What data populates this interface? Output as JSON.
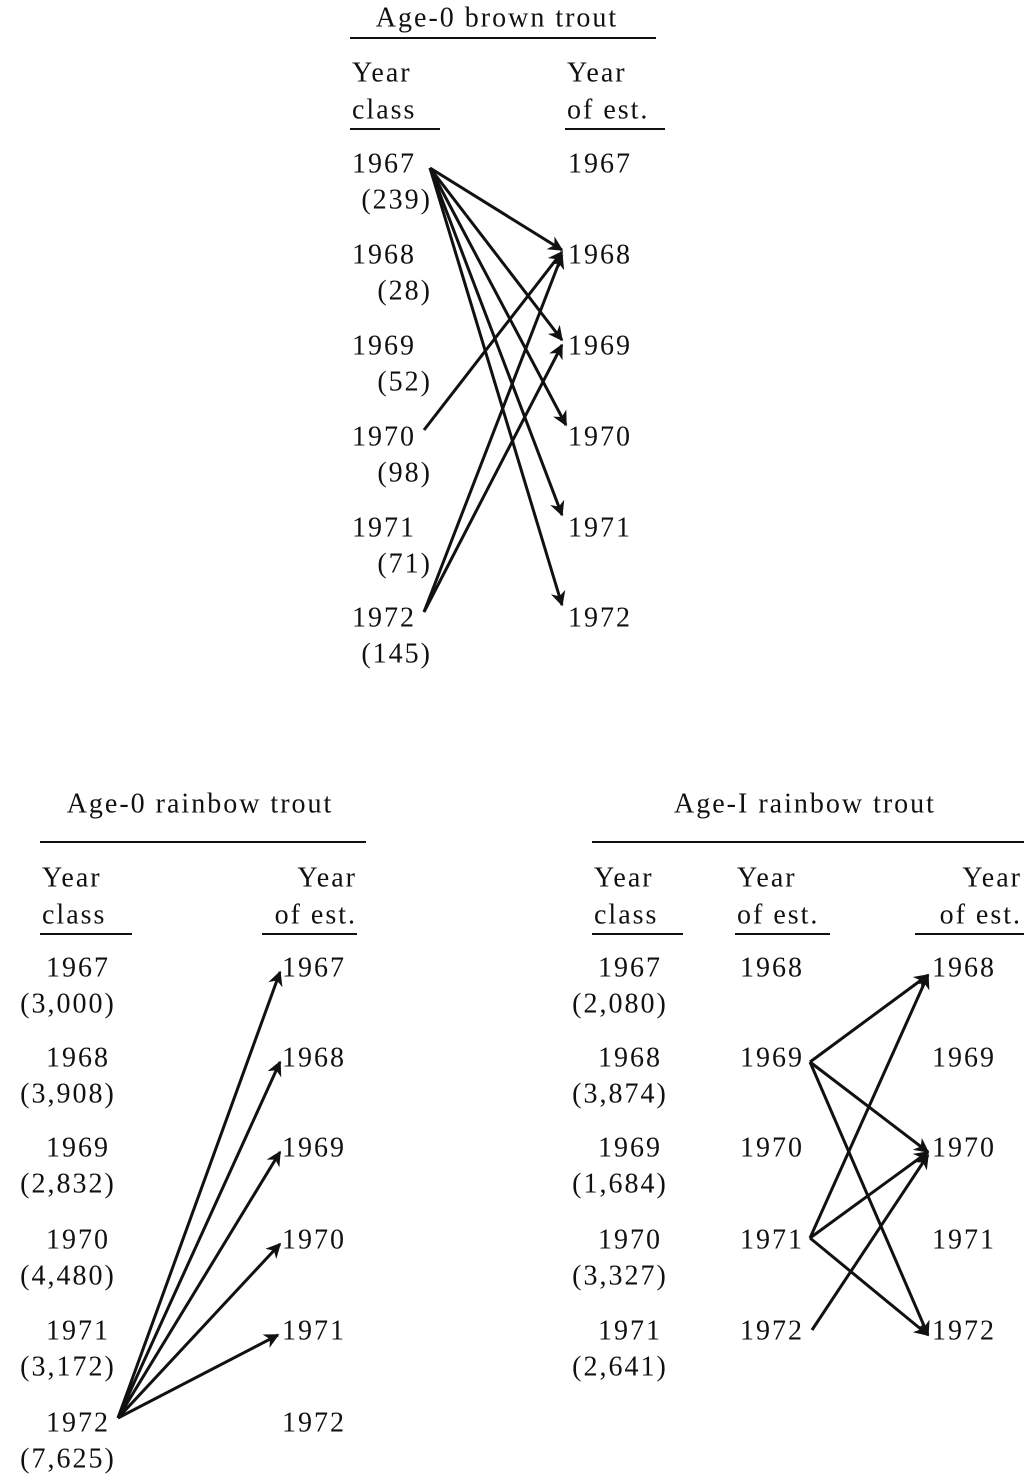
{
  "panels": [
    {
      "title": "Age-0 brown trout",
      "columns": [
        {
          "header": [
            "Year",
            "class"
          ],
          "rows": [
            [
              "1967",
              "(239)"
            ],
            [
              "1968",
              "(28)"
            ],
            [
              "1969",
              "(52)"
            ],
            [
              "1970",
              "(98)"
            ],
            [
              "1971",
              "(71)"
            ],
            [
              "1972",
              "(145)"
            ]
          ]
        },
        {
          "header": [
            "Year",
            "of est."
          ],
          "rows": [
            [
              "1967"
            ],
            [
              "1968"
            ],
            [
              "1969"
            ],
            [
              "1970"
            ],
            [
              "1971"
            ],
            [
              "1972"
            ]
          ]
        }
      ]
    },
    {
      "title": "Age-0 rainbow trout",
      "columns": [
        {
          "header": [
            "Year",
            "class"
          ],
          "rows": [
            [
              "1967",
              "(3,000)"
            ],
            [
              "1968",
              "(3,908)"
            ],
            [
              "1969",
              "(2,832)"
            ],
            [
              "1970",
              "(4,480)"
            ],
            [
              "1971",
              "(3,172)"
            ],
            [
              "1972",
              "(7,625)"
            ]
          ]
        },
        {
          "header": [
            "Year",
            "of est."
          ],
          "rows": [
            [
              "1967"
            ],
            [
              "1968"
            ],
            [
              "1969"
            ],
            [
              "1970"
            ],
            [
              "1971"
            ],
            [
              "1972"
            ]
          ]
        }
      ]
    },
    {
      "title": "Age-I rainbow trout",
      "columns": [
        {
          "header": [
            "Year",
            "class"
          ],
          "rows": [
            [
              "1967",
              "(2,080)"
            ],
            [
              "1968",
              "(3,874)"
            ],
            [
              "1969",
              "(1,684)"
            ],
            [
              "1970",
              "(3,327)"
            ],
            [
              "1971",
              "(2,641)"
            ]
          ]
        },
        {
          "header": [
            "Year",
            "of est."
          ],
          "rows": [
            [
              "1968"
            ],
            [
              "1969"
            ],
            [
              "1970"
            ],
            [
              "1971"
            ],
            [
              "1972"
            ]
          ]
        },
        {
          "header": [
            "Year",
            "of est."
          ],
          "rows": [
            [
              "1968"
            ],
            [
              "1969"
            ],
            [
              "1970"
            ],
            [
              "1971"
            ],
            [
              "1972"
            ]
          ]
        }
      ]
    }
  ]
}
